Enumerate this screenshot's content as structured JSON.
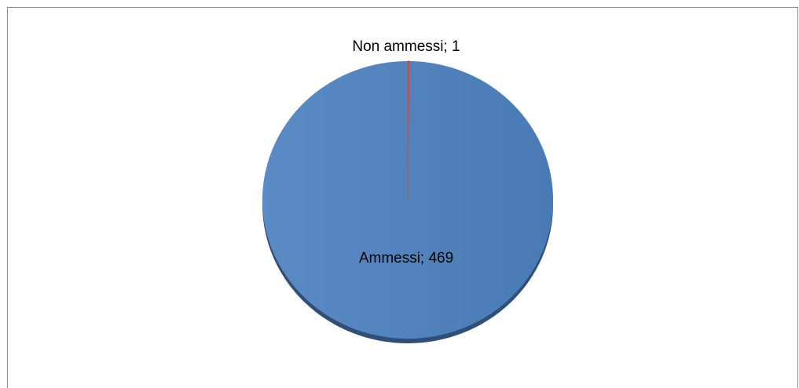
{
  "chart_data": {
    "type": "pie",
    "title": "",
    "slices": [
      {
        "label": "Non ammessi",
        "value": 1,
        "color": "#C0504D",
        "data_label": "Non ammessi; 1"
      },
      {
        "label": "Ammessi",
        "value": 469,
        "color": "#4F81BD",
        "data_label": "Ammessi; 469"
      }
    ],
    "legend": "none",
    "style": "3d-shadow"
  }
}
